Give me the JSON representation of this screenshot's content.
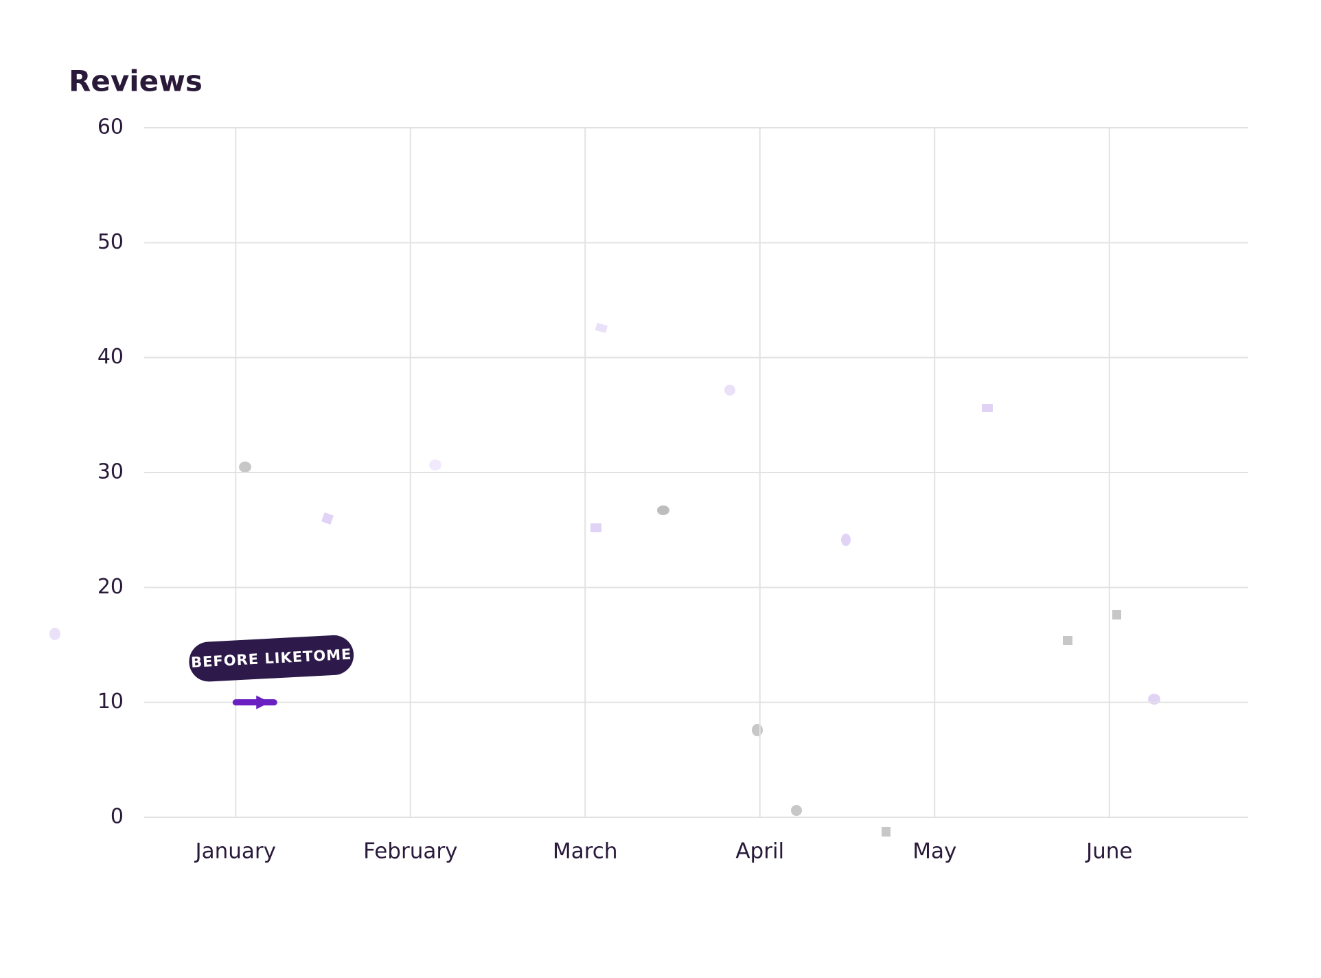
{
  "chart_data": {
    "type": "line",
    "title": "Reviews",
    "categories": [
      "January",
      "February",
      "March",
      "April",
      "May",
      "June"
    ],
    "series": [
      {
        "color": "#6a1fc2",
        "values": [
          10,
          null,
          null,
          null,
          null,
          null
        ]
      }
    ],
    "ylim": [
      0,
      60
    ],
    "yticks": [
      0,
      10,
      20,
      30,
      40,
      50,
      60
    ],
    "grid": true,
    "annotation": "BEFORE LIKETOME"
  }
}
